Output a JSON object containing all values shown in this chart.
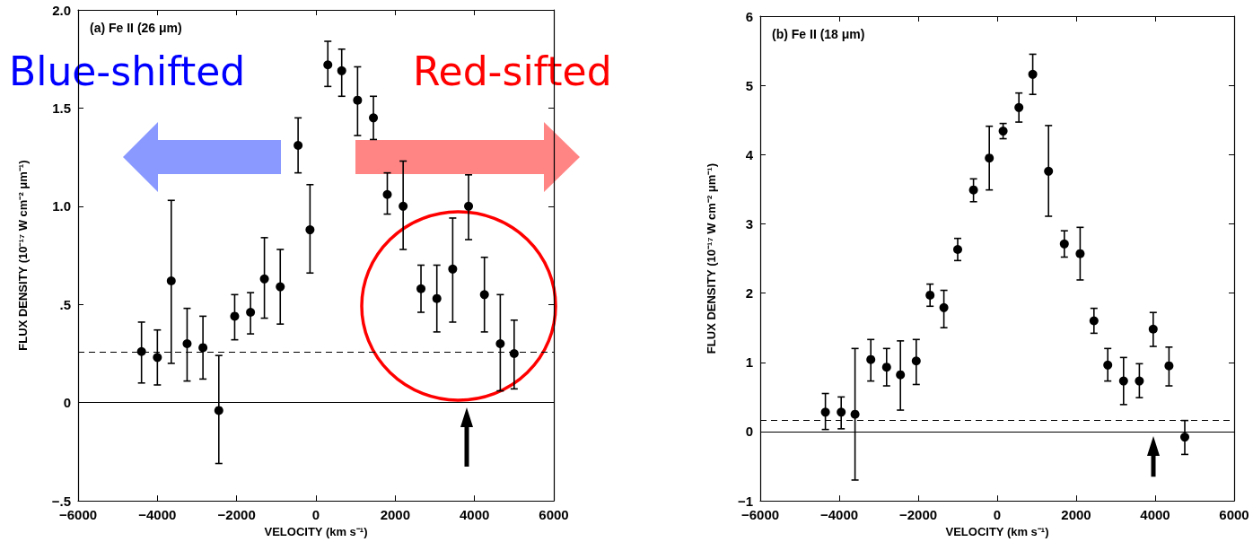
{
  "chart_data": [
    {
      "type": "scatter",
      "title": "(a) Fe II (26 μm)",
      "xlabel": "VELOCITY (km s⁻¹)",
      "ylabel": "FLUX DENSITY (10⁻¹⁷ W cm⁻² μm⁻¹)",
      "x": [
        -4400,
        -4000,
        -3650,
        -3250,
        -2850,
        -2450,
        -2050,
        -1650,
        -1300,
        -900,
        -450,
        -150,
        300,
        650,
        1050,
        1450,
        1800,
        2200,
        2650,
        3050,
        3450,
        3850,
        4250,
        4650,
        5000
      ],
      "values": [
        0.26,
        0.23,
        0.62,
        0.3,
        0.28,
        -0.04,
        0.44,
        0.46,
        0.63,
        0.59,
        1.31,
        0.88,
        1.72,
        1.69,
        1.54,
        1.45,
        1.06,
        1.0,
        0.58,
        0.53,
        0.68,
        1.0,
        0.55,
        0.3,
        0.25
      ],
      "errors": [
        [
          0.1,
          0.41
        ],
        [
          0.09,
          0.37
        ],
        [
          0.2,
          1.03
        ],
        [
          0.11,
          0.48
        ],
        [
          0.12,
          0.44
        ],
        [
          -0.31,
          0.24
        ],
        [
          0.32,
          0.55
        ],
        [
          0.35,
          0.56
        ],
        [
          0.43,
          0.84
        ],
        [
          0.4,
          0.78
        ],
        [
          1.17,
          1.45
        ],
        [
          0.66,
          1.11
        ],
        [
          1.61,
          1.84
        ],
        [
          1.56,
          1.8
        ],
        [
          1.36,
          1.71
        ],
        [
          1.34,
          1.56
        ],
        [
          0.96,
          1.17
        ],
        [
          0.78,
          1.23
        ],
        [
          0.46,
          0.7
        ],
        [
          0.36,
          0.7
        ],
        [
          0.41,
          0.94
        ],
        [
          0.83,
          1.16
        ],
        [
          0.36,
          0.74
        ],
        [
          0.06,
          0.55
        ],
        [
          0.07,
          0.42
        ]
      ],
      "color": "#000000",
      "marker": "circle",
      "xlim": [
        -6000,
        6000
      ],
      "xticks": [
        {
          "value": -6000,
          "label": "−6000"
        },
        {
          "value": -4000,
          "label": "−4000"
        },
        {
          "value": -2000,
          "label": "−2000"
        },
        0,
        2000,
        4000,
        6000
      ],
      "ylim": [
        -0.5,
        2.0
      ],
      "yticks": [
        {
          "value": -0.5,
          "label": "−.5"
        },
        0,
        {
          "value": 0.5,
          "label": ".5"
        },
        {
          "value": 1.0,
          "label": "1.0"
        },
        {
          "value": 1.5,
          "label": "1.5"
        },
        {
          "value": 2.0,
          "label": "2.0"
        }
      ],
      "ref_lines": [
        {
          "axis": "y",
          "value": 0,
          "line_style": "solid"
        },
        {
          "axis": "y",
          "value": 0.26,
          "line_style": "dashed"
        }
      ],
      "annotations": [
        "Blue-shifted",
        "Red-sifted"
      ]
    },
    {
      "type": "scatter",
      "title": "(b) Fe II (18 μm)",
      "xlabel": "VELOCITY (km s⁻¹)",
      "ylabel": "FLUX DENSITY (10⁻¹⁷ W cm⁻² μm⁻¹)",
      "x": [
        -4350,
        -3950,
        -3600,
        -3200,
        -2800,
        -2450,
        -2050,
        -1700,
        -1350,
        -1000,
        -600,
        -200,
        150,
        550,
        900,
        1300,
        1700,
        2100,
        2450,
        2800,
        3200,
        3600,
        3950,
        4350,
        4750
      ],
      "values": [
        0.28,
        0.28,
        0.25,
        1.04,
        0.93,
        0.82,
        1.02,
        1.97,
        1.79,
        2.63,
        3.49,
        3.95,
        4.34,
        4.68,
        5.16,
        3.76,
        2.71,
        2.57,
        1.6,
        0.96,
        0.73,
        0.73,
        1.48,
        0.95,
        -0.08
      ],
      "errors": [
        [
          0.03,
          0.55
        ],
        [
          0.04,
          0.5
        ],
        [
          -0.7,
          1.2
        ],
        [
          0.73,
          1.33
        ],
        [
          0.66,
          1.2
        ],
        [
          0.31,
          1.31
        ],
        [
          0.68,
          1.33
        ],
        [
          1.81,
          2.13
        ],
        [
          1.5,
          2.04
        ],
        [
          2.47,
          2.79
        ],
        [
          3.32,
          3.65
        ],
        [
          3.49,
          4.41
        ],
        [
          4.23,
          4.45
        ],
        [
          4.47,
          4.89
        ],
        [
          4.87,
          5.45
        ],
        [
          3.11,
          4.42
        ],
        [
          2.52,
          2.9
        ],
        [
          2.19,
          2.95
        ],
        [
          1.42,
          1.78
        ],
        [
          0.73,
          1.2
        ],
        [
          0.39,
          1.07
        ],
        [
          0.49,
          0.98
        ],
        [
          1.23,
          1.72
        ],
        [
          0.66,
          1.22
        ],
        [
          -0.33,
          0.16
        ]
      ],
      "color": "#000000",
      "marker": "circle",
      "xlim": [
        -6000,
        6000
      ],
      "xticks": [
        {
          "value": -6000,
          "label": "−6000"
        },
        {
          "value": -4000,
          "label": "−4000"
        },
        {
          "value": -2000,
          "label": "−2000"
        },
        0,
        2000,
        4000,
        6000
      ],
      "ylim": [
        -1,
        6
      ],
      "yticks": [
        {
          "value": -1,
          "label": "−1"
        },
        0,
        1,
        2,
        3,
        4,
        5,
        6
      ],
      "ref_lines": [
        {
          "axis": "y",
          "value": 0,
          "line_style": "solid"
        },
        {
          "axis": "y",
          "value": 0.17,
          "line_style": "dashed"
        }
      ]
    }
  ]
}
